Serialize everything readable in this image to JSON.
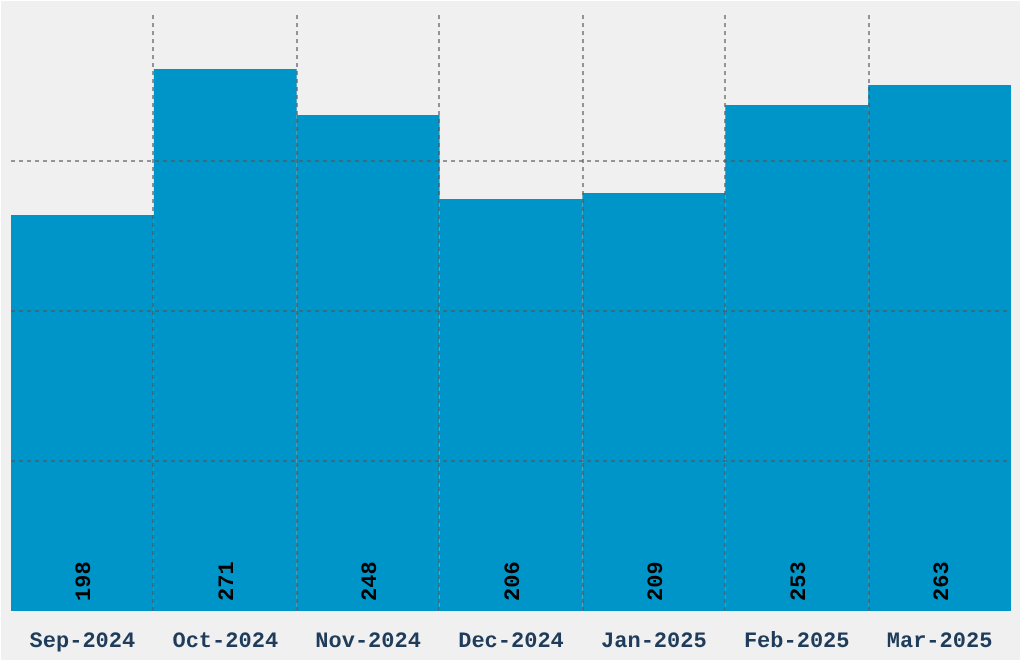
{
  "chart_data": {
    "type": "bar",
    "categories": [
      "Sep-2024",
      "Oct-2024",
      "Nov-2024",
      "Dec-2024",
      "Jan-2025",
      "Feb-2025",
      "Mar-2025"
    ],
    "values": [
      198,
      271,
      248,
      206,
      209,
      253,
      263
    ],
    "color": "#0095c8",
    "ylim": [
      0,
      300
    ],
    "yticks": [
      {
        "value": 0,
        "label": null
      },
      {
        "value": 75,
        "label": null
      },
      {
        "value": 150,
        "label": null
      },
      {
        "value": 225,
        "label": null
      },
      {
        "value": 300,
        "label": null
      }
    ],
    "tick_labels": "x",
    "grid": true,
    "data_labels": true
  }
}
